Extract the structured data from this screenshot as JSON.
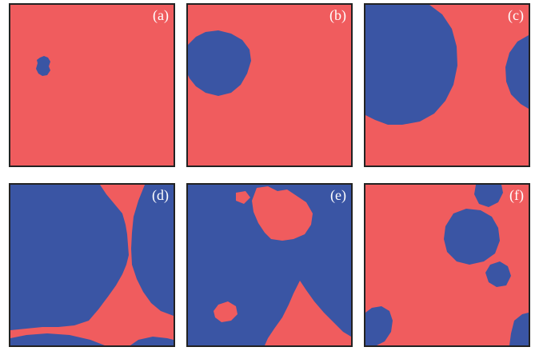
{
  "colors": {
    "phase_a": "#F05C5E",
    "phase_b": "#3A55A4",
    "frame": "#222222",
    "label": "#ffffff"
  },
  "panels": [
    {
      "label": "(a)"
    },
    {
      "label": "(b)"
    },
    {
      "label": "(c)"
    },
    {
      "label": "(d)"
    },
    {
      "label": "(e)"
    },
    {
      "label": "(f)"
    }
  ]
}
